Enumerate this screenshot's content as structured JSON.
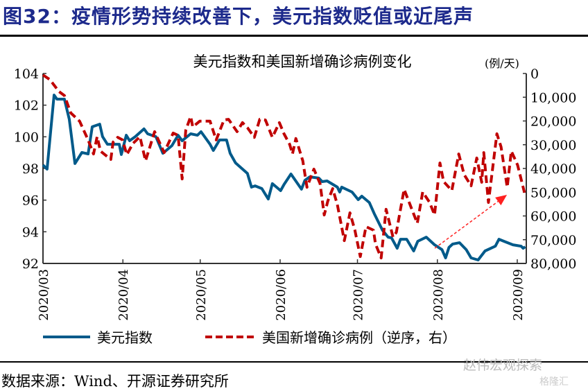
{
  "figure_title": "图32：疫情形势持续改善下，美元指数贬值或近尾声",
  "source": "数据来源：Wind、开源证券研究所",
  "watermark": "赵伟宏观探索",
  "watermark2": "格隆汇",
  "colors": {
    "title": "#1d2a8c",
    "dxy": "#005a8a",
    "cases": "#c00000",
    "arrow": "#ff2020"
  },
  "chart_data": {
    "type": "line",
    "title": "美元指数和美国新增确诊病例变化",
    "right_unit": "(例/天)",
    "x_unit": "days since 2020-03-01",
    "xlim": [
      0,
      187.5
    ],
    "x_ticks": [
      {
        "day": 0,
        "label": "2020/03"
      },
      {
        "day": 31,
        "label": "2020/04"
      },
      {
        "day": 61,
        "label": "2020/05"
      },
      {
        "day": 92,
        "label": "2020/06"
      },
      {
        "day": 122,
        "label": "2020/07"
      },
      {
        "day": 153,
        "label": "2020/08"
      },
      {
        "day": 184,
        "label": "2020/09"
      }
    ],
    "ylim_left": [
      92,
      104
    ],
    "y_ticks_left": [
      "92",
      "94",
      "96",
      "98",
      "100",
      "102",
      "104"
    ],
    "ylim_right": [
      0,
      80000
    ],
    "right_inverted": true,
    "y_ticks_right": [
      "0",
      "10,000",
      "20,000",
      "30,000",
      "40,000",
      "50,000",
      "60,000",
      "70,000",
      "80,000"
    ],
    "series": [
      {
        "name": "美元指数",
        "axis": "left",
        "style": "solid",
        "x": [
          0,
          1.6,
          4.3,
          5.4,
          8.3,
          10.2,
          12.4,
          15.1,
          17.5,
          19.1,
          22,
          23.1,
          25,
          29.6,
          30.4,
          32.3,
          33.6,
          35.8,
          39.2,
          40.6,
          43.8,
          46.5,
          50,
          52.4,
          54,
          57.3,
          59.9,
          61.3,
          64.8,
          66.1,
          68.5,
          71.2,
          72.6,
          74.7,
          79.3,
          80.9,
          82.3,
          84.9,
          87.4,
          89,
          92.2,
          93.5,
          96.2,
          100.3,
          101.6,
          103.5,
          107,
          108.3,
          110.2,
          114.2,
          115.1,
          115.9,
          119.9,
          122.3,
          123.7,
          126.6,
          128.5,
          131.7,
          133.9,
          135.2,
          137.4,
          138.7,
          141.1,
          143.8,
          145.4,
          148.7,
          151.9,
          154.8,
          156.2,
          157.5,
          158.9,
          161.6,
          164.2,
          166.1,
          168.8,
          171.5,
          175.5,
          176.9,
          178.8,
          182.3,
          185.5,
          186.3,
          187.1
        ],
        "y": [
          98.22,
          97.96,
          102.64,
          102.38,
          102.38,
          101.11,
          98.31,
          99.01,
          98.92,
          100.63,
          100.8,
          100.01,
          99.53,
          99.53,
          98.88,
          100.1,
          99.75,
          100.01,
          100.5,
          100.19,
          100.01,
          98.96,
          99.44,
          100.1,
          99.75,
          100.19,
          100.1,
          100.32,
          99.53,
          99.14,
          99.8,
          99.8,
          98.96,
          98.35,
          97.69,
          96.82,
          96.9,
          96.73,
          96.07,
          97.04,
          96.6,
          96.99,
          97.65,
          96.69,
          97.25,
          97.47,
          97.39,
          97.17,
          97.21,
          96.82,
          96.51,
          96.82,
          96.51,
          96.03,
          96.25,
          95.85,
          95.15,
          94.1,
          93.66,
          93.62,
          92.96,
          93.53,
          93.53,
          92.79,
          93.4,
          93.66,
          93.18,
          92.87,
          92.35,
          93.01,
          93.22,
          93.31,
          92.87,
          92.35,
          92.22,
          92.79,
          93.09,
          93.53,
          93.4,
          93.18,
          93.09,
          92.96,
          93.05
        ]
      },
      {
        "name": "美国新增确诊病例（逆序，右）",
        "axis": "right",
        "style": "dashed",
        "x": [
          0,
          2.7,
          6.2,
          8.3,
          10.8,
          14.2,
          17.5,
          19.6,
          21,
          22.3,
          26.3,
          27.2,
          29,
          30.9,
          32.5,
          34.9,
          37.6,
          39.8,
          43.3,
          47,
          50.5,
          52.4,
          54,
          55.4,
          57.3,
          58.1,
          60.8,
          64.8,
          67.2,
          70.2,
          72,
          75.3,
          77.4,
          79.3,
          82,
          84.1,
          86.3,
          89,
          91.7,
          93.5,
          95.7,
          96.8,
          98.1,
          100.8,
          102.4,
          105.1,
          107.5,
          109.1,
          110.5,
          112.4,
          114.2,
          116.9,
          119.1,
          121,
          123.1,
          125.3,
          128.2,
          129,
          131.2,
          133.1,
          135.8,
          137.1,
          140.1,
          142.7,
          145.2,
          147.3,
          150,
          151.9,
          154,
          155.4,
          158.6,
          161.3,
          163.4,
          166.1,
          168.3,
          170.2,
          171,
          172.8,
          176.1,
          177.7,
          180.1,
          181.7,
          184.1,
          186.8
        ],
        "y": [
          600,
          2600,
          7600,
          9300,
          16600,
          20100,
          28000,
          33900,
          26600,
          32700,
          36200,
          28900,
          26900,
          28000,
          34200,
          29500,
          26600,
          36800,
          24500,
          33300,
          25100,
          26000,
          44400,
          23900,
          18100,
          22500,
          20100,
          20100,
          28000,
          19600,
          19300,
          24500,
          20700,
          22800,
          26900,
          19300,
          19600,
          26900,
          20700,
          25400,
          29800,
          33900,
          27400,
          36800,
          47900,
          40300,
          46400,
          59600,
          53700,
          48500,
          55200,
          70400,
          58700,
          66000,
          77100,
          64500,
          66000,
          71800,
          77700,
          57200,
          68900,
          66900,
          48800,
          56100,
          63100,
          49900,
          54300,
          59600,
          37700,
          45500,
          49300,
          33900,
          42600,
          47300,
          35600,
          45800,
          33300,
          54300,
          25400,
          30900,
          47900,
          32700,
          38500,
          50200
        ]
      }
    ],
    "annotations": [
      {
        "type": "arrow",
        "from": {
          "day": 152,
          "cases": 73600
        },
        "to": {
          "day": 180,
          "cases": 51100
        }
      }
    ],
    "legend": {
      "position": "bottom",
      "items": [
        "美元指数",
        "美国新增确诊病例（逆序，右）"
      ]
    },
    "grid": false
  }
}
